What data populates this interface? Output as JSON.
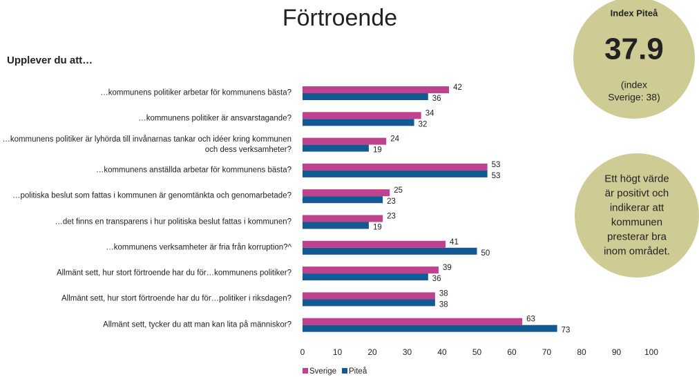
{
  "chart_data": {
    "type": "bar",
    "orientation": "horizontal",
    "title": "Förtroende",
    "subtitle": "Upplever du att…",
    "categories": [
      "…kommunens politiker arbetar för kommunens bästa?",
      "…kommunens politiker är ansvarstagande?",
      "…kommunens politiker är lyhörda till invånarnas tankar och idéer kring kommunen och dess verksamheter?",
      "…kommunens anställda arbetar för kommunens bästa?",
      "…politiska beslut som fattas i kommunen är genomtänkta och genomarbetade?",
      "…det finns en transparens i hur politiska beslut fattas i kommunen?",
      "…kommunens verksamheter är fria från korruption?^",
      "Allmänt sett, hur stort förtroende har du för…kommunens politiker?",
      "Allmänt sett, hur stort förtroende har du för…politiker i riksdagen?",
      "Allmänt sett, tycker du att man kan lita på människor?"
    ],
    "series": [
      {
        "name": "Sverige",
        "color": "#c0428e",
        "values": [
          42,
          34,
          24,
          53,
          25,
          23,
          41,
          39,
          38,
          63
        ]
      },
      {
        "name": "Piteå",
        "color": "#135a93",
        "values": [
          36,
          32,
          19,
          53,
          23,
          19,
          50,
          36,
          38,
          73
        ]
      }
    ],
    "xlim": [
      0,
      100
    ],
    "xticks": [
      0,
      10,
      20,
      30,
      40,
      50,
      60,
      70,
      80,
      90,
      100
    ],
    "legend": "bottom"
  },
  "index_box": {
    "title": "Index Piteå",
    "value": 37.9,
    "note_lines": [
      "(index",
      "Sverige: 38)"
    ]
  },
  "info_box": {
    "lines": [
      "Ett högt värde",
      "är positivt och",
      "indikerar att",
      "kommunen",
      "presterar bra",
      "inom området."
    ]
  }
}
